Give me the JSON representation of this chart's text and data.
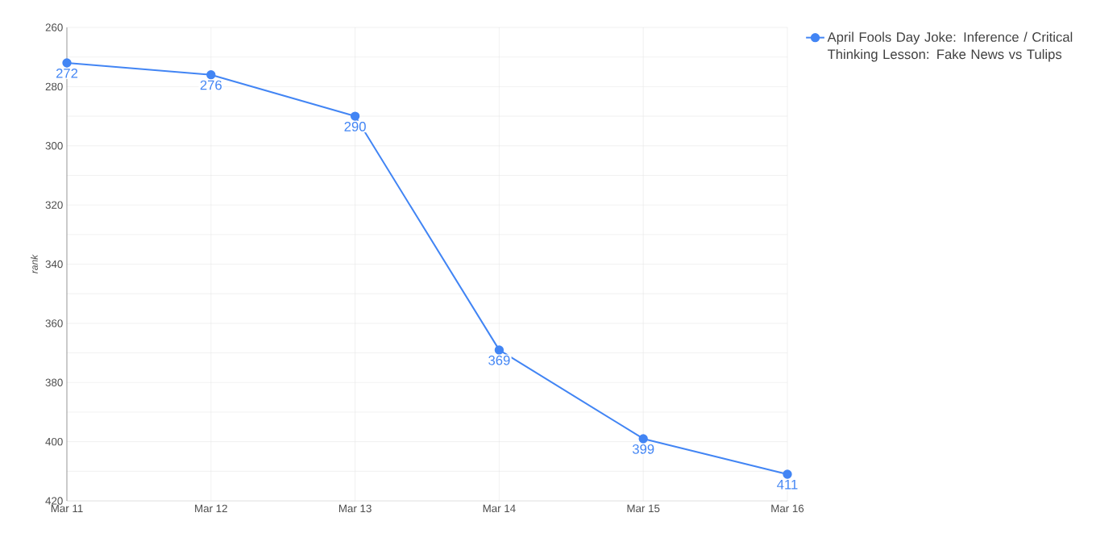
{
  "chart_data": {
    "type": "line",
    "ylabel": "rank",
    "categories": [
      "Mar 11",
      "Mar 12",
      "Mar 13",
      "Mar 14",
      "Mar 15",
      "Mar 16"
    ],
    "series": [
      {
        "name": "April Fools Day Joke: Inference / Critical Thinking Lesson: Fake News vs Tulips",
        "color": "#4285f4",
        "values": [
          272,
          276,
          290,
          369,
          399,
          411
        ]
      }
    ],
    "ylim": [
      420,
      260
    ],
    "yticks": [
      260,
      {
        "value": 270,
        "label": null
      },
      280,
      {
        "value": 290,
        "label": null
      },
      300,
      {
        "value": 310,
        "label": null
      },
      320,
      {
        "value": 330,
        "label": null
      },
      340,
      {
        "value": 350,
        "label": null
      },
      360,
      {
        "value": 370,
        "label": null
      },
      380,
      {
        "value": 390,
        "label": null
      },
      400,
      {
        "value": 410,
        "label": null
      },
      420
    ],
    "grid": true,
    "legend": "top right",
    "marker": "circle",
    "line_style": "solid",
    "data_labels": true
  }
}
